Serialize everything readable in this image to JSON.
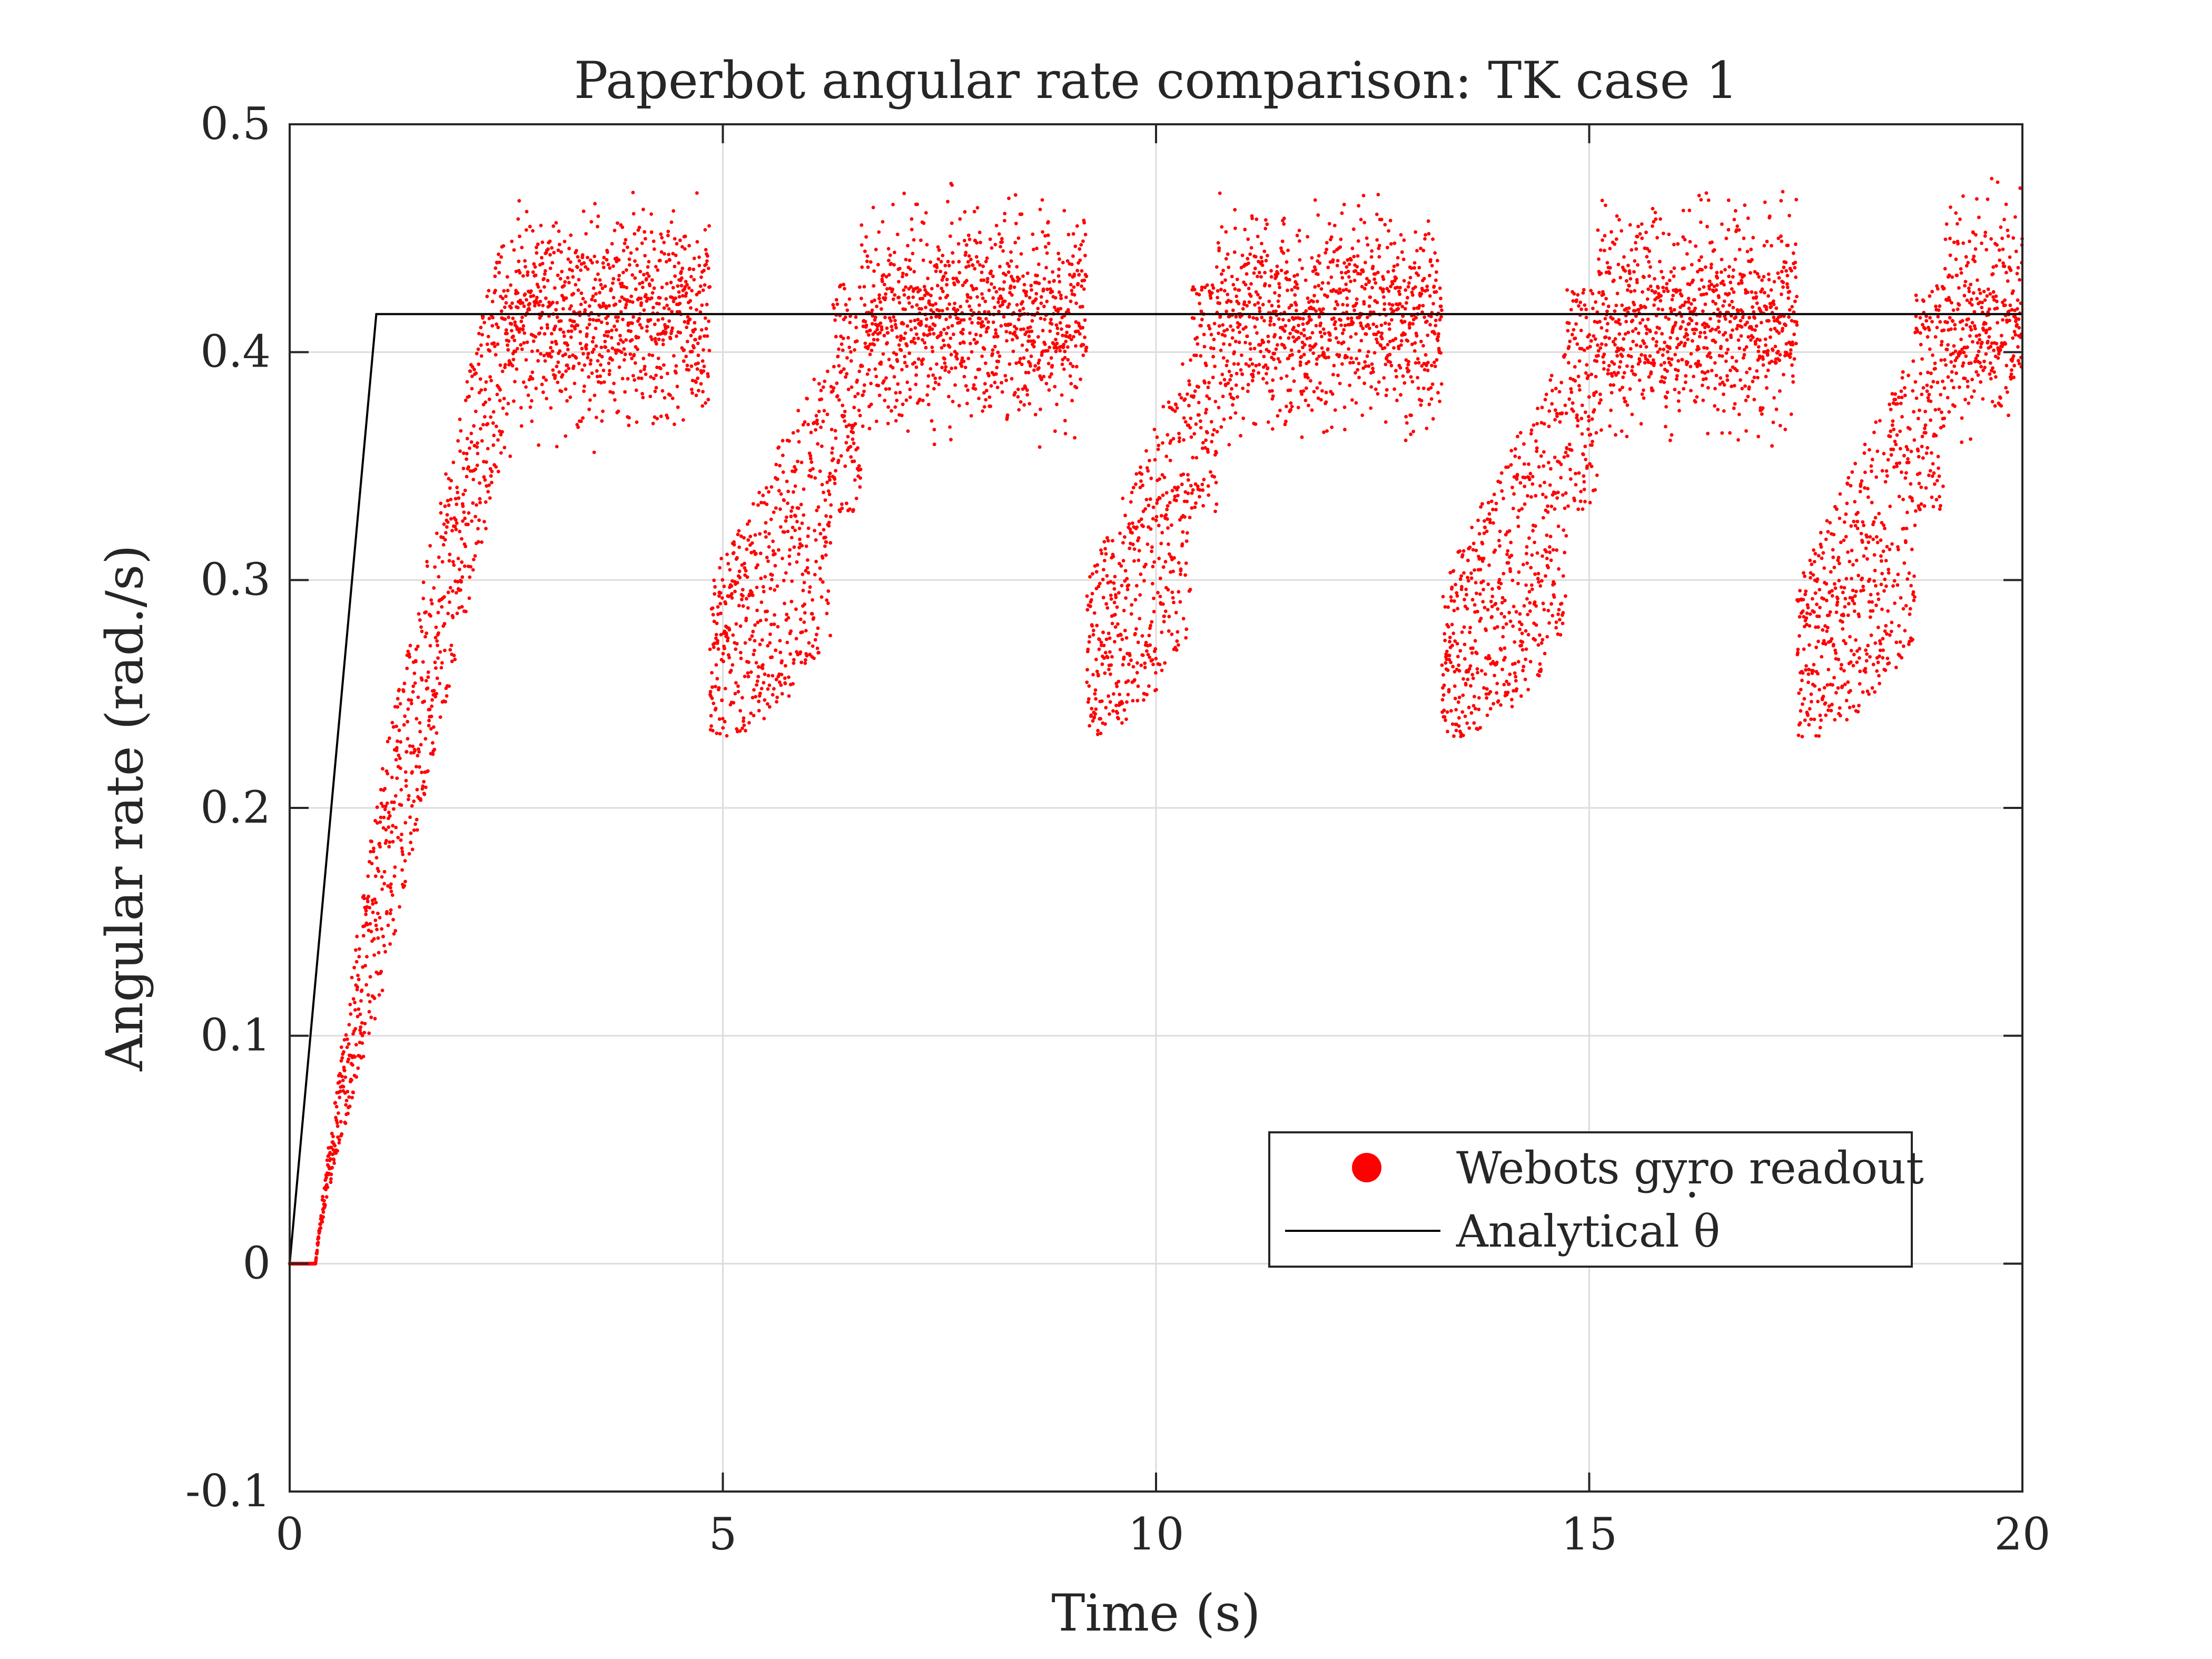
{
  "chart_data": {
    "type": "scatter",
    "title": "Paperbot angular rate comparison: TK case 1",
    "xlabel": "Time (s)",
    "ylabel": "Angular rate (rad./s)",
    "xlim": [
      0,
      20
    ],
    "ylim": [
      -0.1,
      0.5
    ],
    "xticks": [
      0,
      5,
      10,
      15,
      20
    ],
    "xtick_labels": [
      "0",
      "5",
      "10",
      "15",
      "20"
    ],
    "yticks": [
      -0.1,
      0,
      0.1,
      0.2,
      0.3,
      0.4,
      0.5
    ],
    "ytick_labels": [
      "-0.1",
      "0",
      "0.1",
      "0.2",
      "0.3",
      "0.4",
      "0.5"
    ],
    "grid": true,
    "legend_position": "lower-right",
    "series": [
      {
        "name": "Webots gyro readout",
        "kind": "scatter",
        "color": "#ff0000",
        "pattern": {
          "period_s": 4.1,
          "first_cycle": {
            "start_s": 0.3,
            "end_s": 2.5,
            "start_value": 0.0,
            "end_value": 0.41
          },
          "plateau_mean": 0.415,
          "plateau_spread": [
            0.35,
            0.48
          ],
          "dip_windows_s": [
            [
              4.85,
              6.6
            ],
            [
              9.2,
              10.7
            ],
            [
              13.3,
              15.1
            ],
            [
              17.4,
              19.1
            ]
          ],
          "dip_min": 0.23
        }
      },
      {
        "name": "Analytical θ̇",
        "kind": "line",
        "color": "#000000",
        "x": [
          0,
          1.0,
          20
        ],
        "y": [
          0,
          0.4167,
          0.4167
        ]
      }
    ]
  },
  "legend": {
    "scatter_label": "Webots gyro readout",
    "line_label_text": "Analytical θ",
    "line_label_accent": "·"
  }
}
